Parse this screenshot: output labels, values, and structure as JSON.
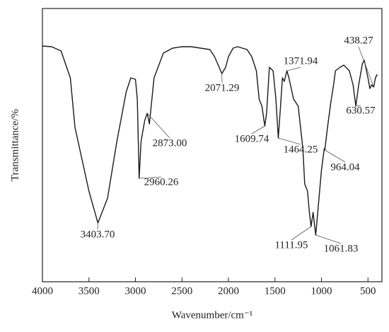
{
  "chart_data": {
    "type": "line",
    "x_label": "Wavenumber/cm⁻¹",
    "y_label": "Transmittance/%",
    "xlim": [
      4000,
      350
    ],
    "ylim": [
      0,
      386
    ],
    "xticks": [
      4000,
      3500,
      3000,
      2500,
      2000,
      1500,
      1000,
      500
    ],
    "color": "#1a1a1a",
    "x": [
      4000,
      3900,
      3800,
      3700,
      3650,
      3600,
      3500,
      3403.7,
      3300,
      3200,
      3100,
      3050,
      3000,
      2980,
      2960.26,
      2940,
      2900,
      2873,
      2850,
      2800,
      2700,
      2600,
      2500,
      2400,
      2300,
      2200,
      2150,
      2100,
      2071.29,
      2030,
      2000,
      1950,
      1900,
      1800,
      1750,
      1700,
      1670,
      1640,
      1609.74,
      1590,
      1560,
      1520,
      1490,
      1464.25,
      1440,
      1420,
      1400,
      1371.94,
      1350,
      1300,
      1250,
      1200,
      1180,
      1150,
      1130,
      1111.95,
      1090,
      1061.83,
      1040,
      1000,
      970,
      964.04,
      940,
      900,
      870,
      850,
      800,
      760,
      730,
      700,
      660,
      630.57,
      600,
      560,
      540,
      500,
      480,
      460,
      438.27,
      420,
      400
    ],
    "values": [
      333,
      332,
      326,
      288,
      218,
      188,
      128,
      83,
      118,
      198,
      268,
      288,
      286,
      258,
      146,
      198,
      228,
      238,
      223,
      288,
      323,
      330,
      332,
      332,
      330,
      328,
      318,
      303,
      294,
      303,
      318,
      330,
      332,
      328,
      318,
      298,
      258,
      248,
      220,
      238,
      303,
      298,
      258,
      203,
      248,
      288,
      283,
      298,
      288,
      258,
      248,
      188,
      138,
      128,
      98,
      78,
      98,
      66,
      98,
      158,
      188,
      186,
      213,
      253,
      278,
      298,
      303,
      306,
      302,
      298,
      278,
      248,
      278,
      308,
      313,
      288,
      273,
      278,
      275,
      288,
      293
    ],
    "annotations": [
      {
        "text": "3403.70",
        "x": 3403.7
      },
      {
        "text": "2960.26",
        "x": 2960.26
      },
      {
        "text": "2873.00",
        "x": 2873
      },
      {
        "text": "2071.29",
        "x": 2071.29
      },
      {
        "text": "1609.74",
        "x": 1609.74
      },
      {
        "text": "1371.94",
        "x": 1371.94
      },
      {
        "text": "1464.25",
        "x": 1464.25
      },
      {
        "text": "964.04",
        "x": 964.04
      },
      {
        "text": "630.57",
        "x": 630.57
      },
      {
        "text": "438.27",
        "x": 438.27
      },
      {
        "text": "1111.95",
        "x": 1111.95
      },
      {
        "text": "1061.83",
        "x": 1061.83
      }
    ]
  }
}
